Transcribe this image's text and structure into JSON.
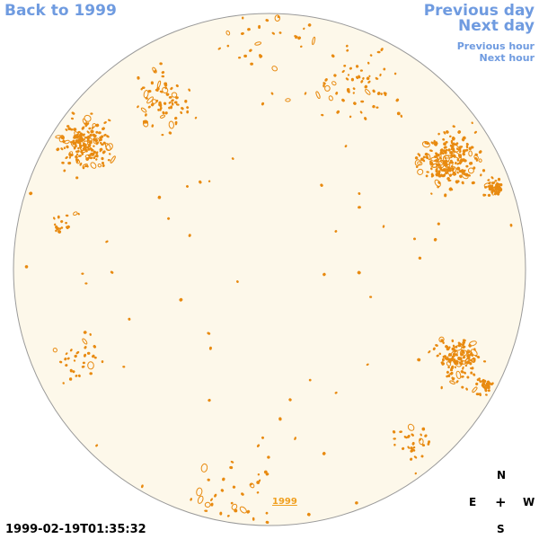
{
  "nav": {
    "back_label": "Back to 1999",
    "prev_day_label": "Previous day",
    "next_day_label": "Next day",
    "prev_hour_label": "Previous hour",
    "next_hour_label": "Next hour"
  },
  "disk": {
    "year_link_label": "1999",
    "disk_color": "#fdf8ea",
    "contour_color": "#e88a10"
  },
  "timestamp": "1999-02-19T01:35:32",
  "compass": {
    "north": "N",
    "east": "E",
    "center": "+",
    "west": "W",
    "south": "S"
  },
  "colors": {
    "link": "#6f9be0",
    "year_link": "#f0a020",
    "text": "#000000"
  }
}
